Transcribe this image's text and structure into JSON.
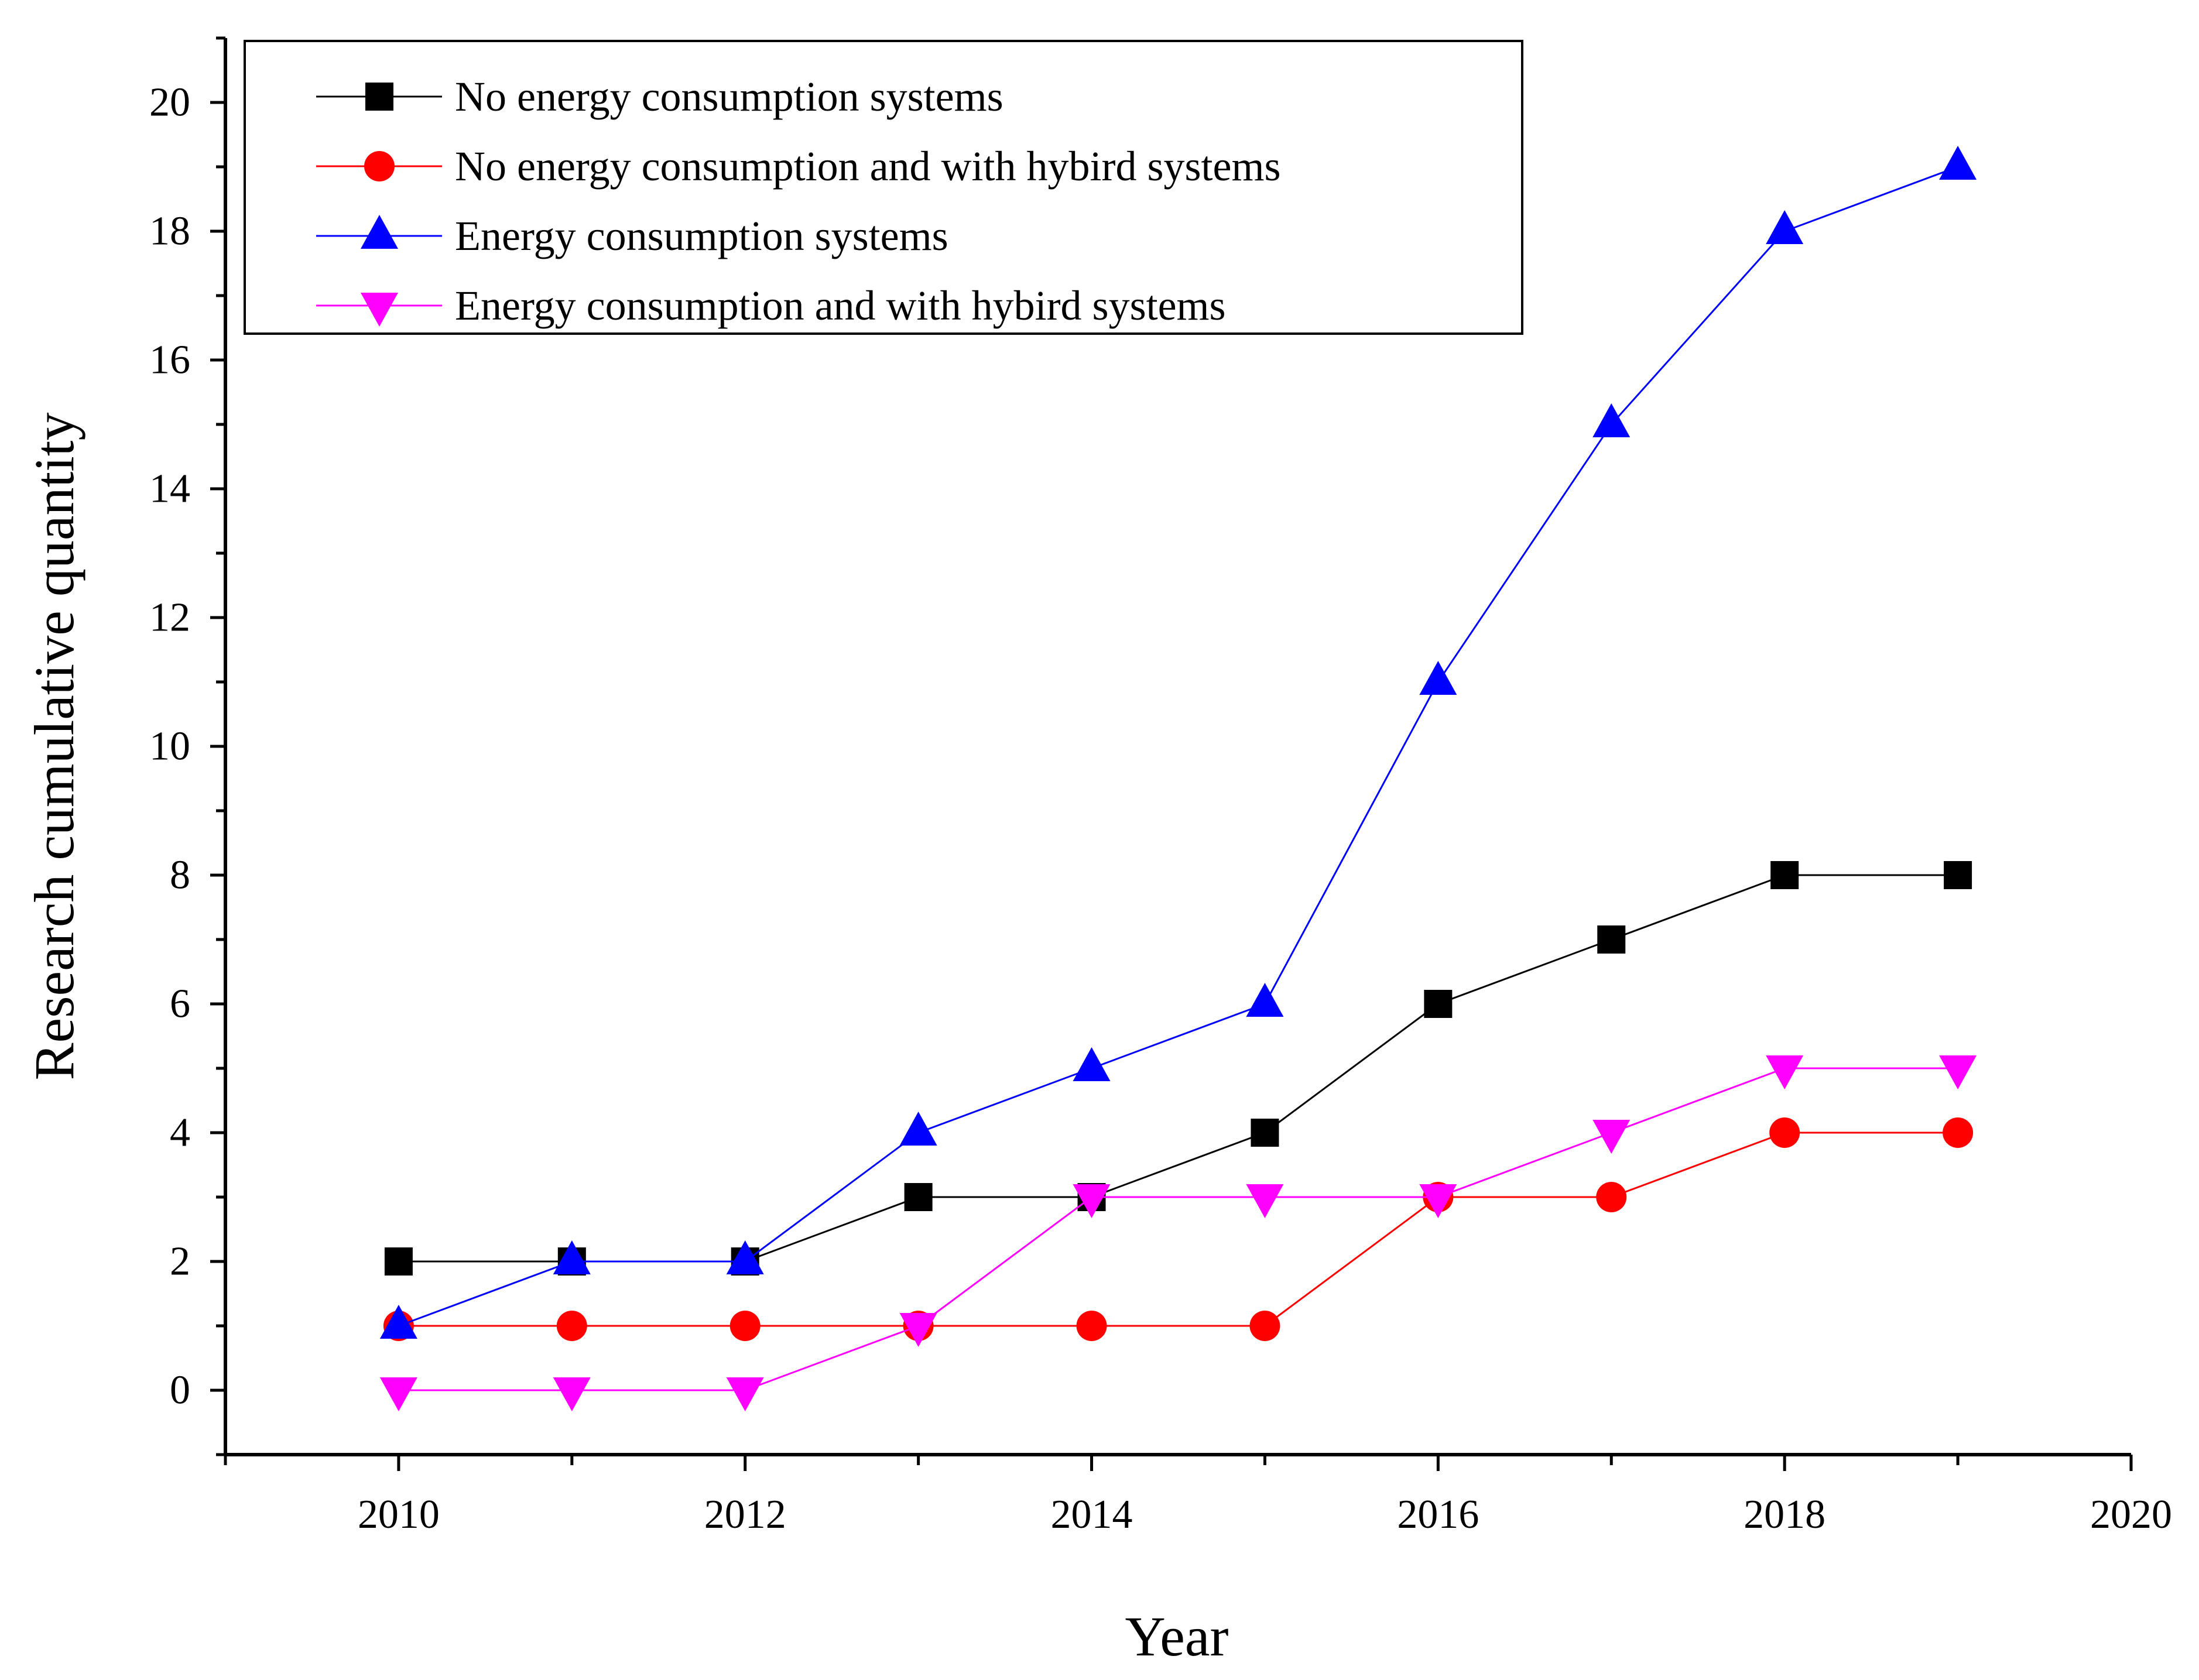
{
  "chart_data": {
    "type": "line",
    "title": "",
    "xlabel": "Year",
    "ylabel": "Research cumulative quantity",
    "xlim": [
      2009,
      2020
    ],
    "ylim": [
      -1,
      21
    ],
    "xticks": [
      2010,
      2012,
      2014,
      2016,
      2018,
      2020
    ],
    "yticks": [
      0,
      2,
      4,
      6,
      8,
      10,
      12,
      14,
      16,
      18,
      20
    ],
    "grid": false,
    "legend_position": "top-left",
    "x": [
      2010,
      2011,
      2012,
      2013,
      2014,
      2015,
      2016,
      2017,
      2018,
      2019
    ],
    "series": [
      {
        "name": "No energy consumption systems",
        "color": "#000000",
        "marker": "square",
        "values": [
          2,
          2,
          2,
          3,
          3,
          4,
          6,
          7,
          8,
          8
        ]
      },
      {
        "name": "No energy consumption and with hybird systems",
        "color": "#ff0000",
        "marker": "circle",
        "values": [
          1,
          1,
          1,
          1,
          1,
          1,
          3,
          3,
          4,
          4
        ]
      },
      {
        "name": "Energy consumption systems",
        "color": "#0000ff",
        "marker": "triangle-up",
        "values": [
          1,
          2,
          2,
          4,
          5,
          6,
          11,
          15,
          18,
          19
        ]
      },
      {
        "name": "Energy consumption and with hybird systems",
        "color": "#ff00ff",
        "marker": "triangle-down",
        "values": [
          0,
          0,
          0,
          1,
          3,
          3,
          3,
          4,
          5,
          5
        ]
      }
    ]
  }
}
